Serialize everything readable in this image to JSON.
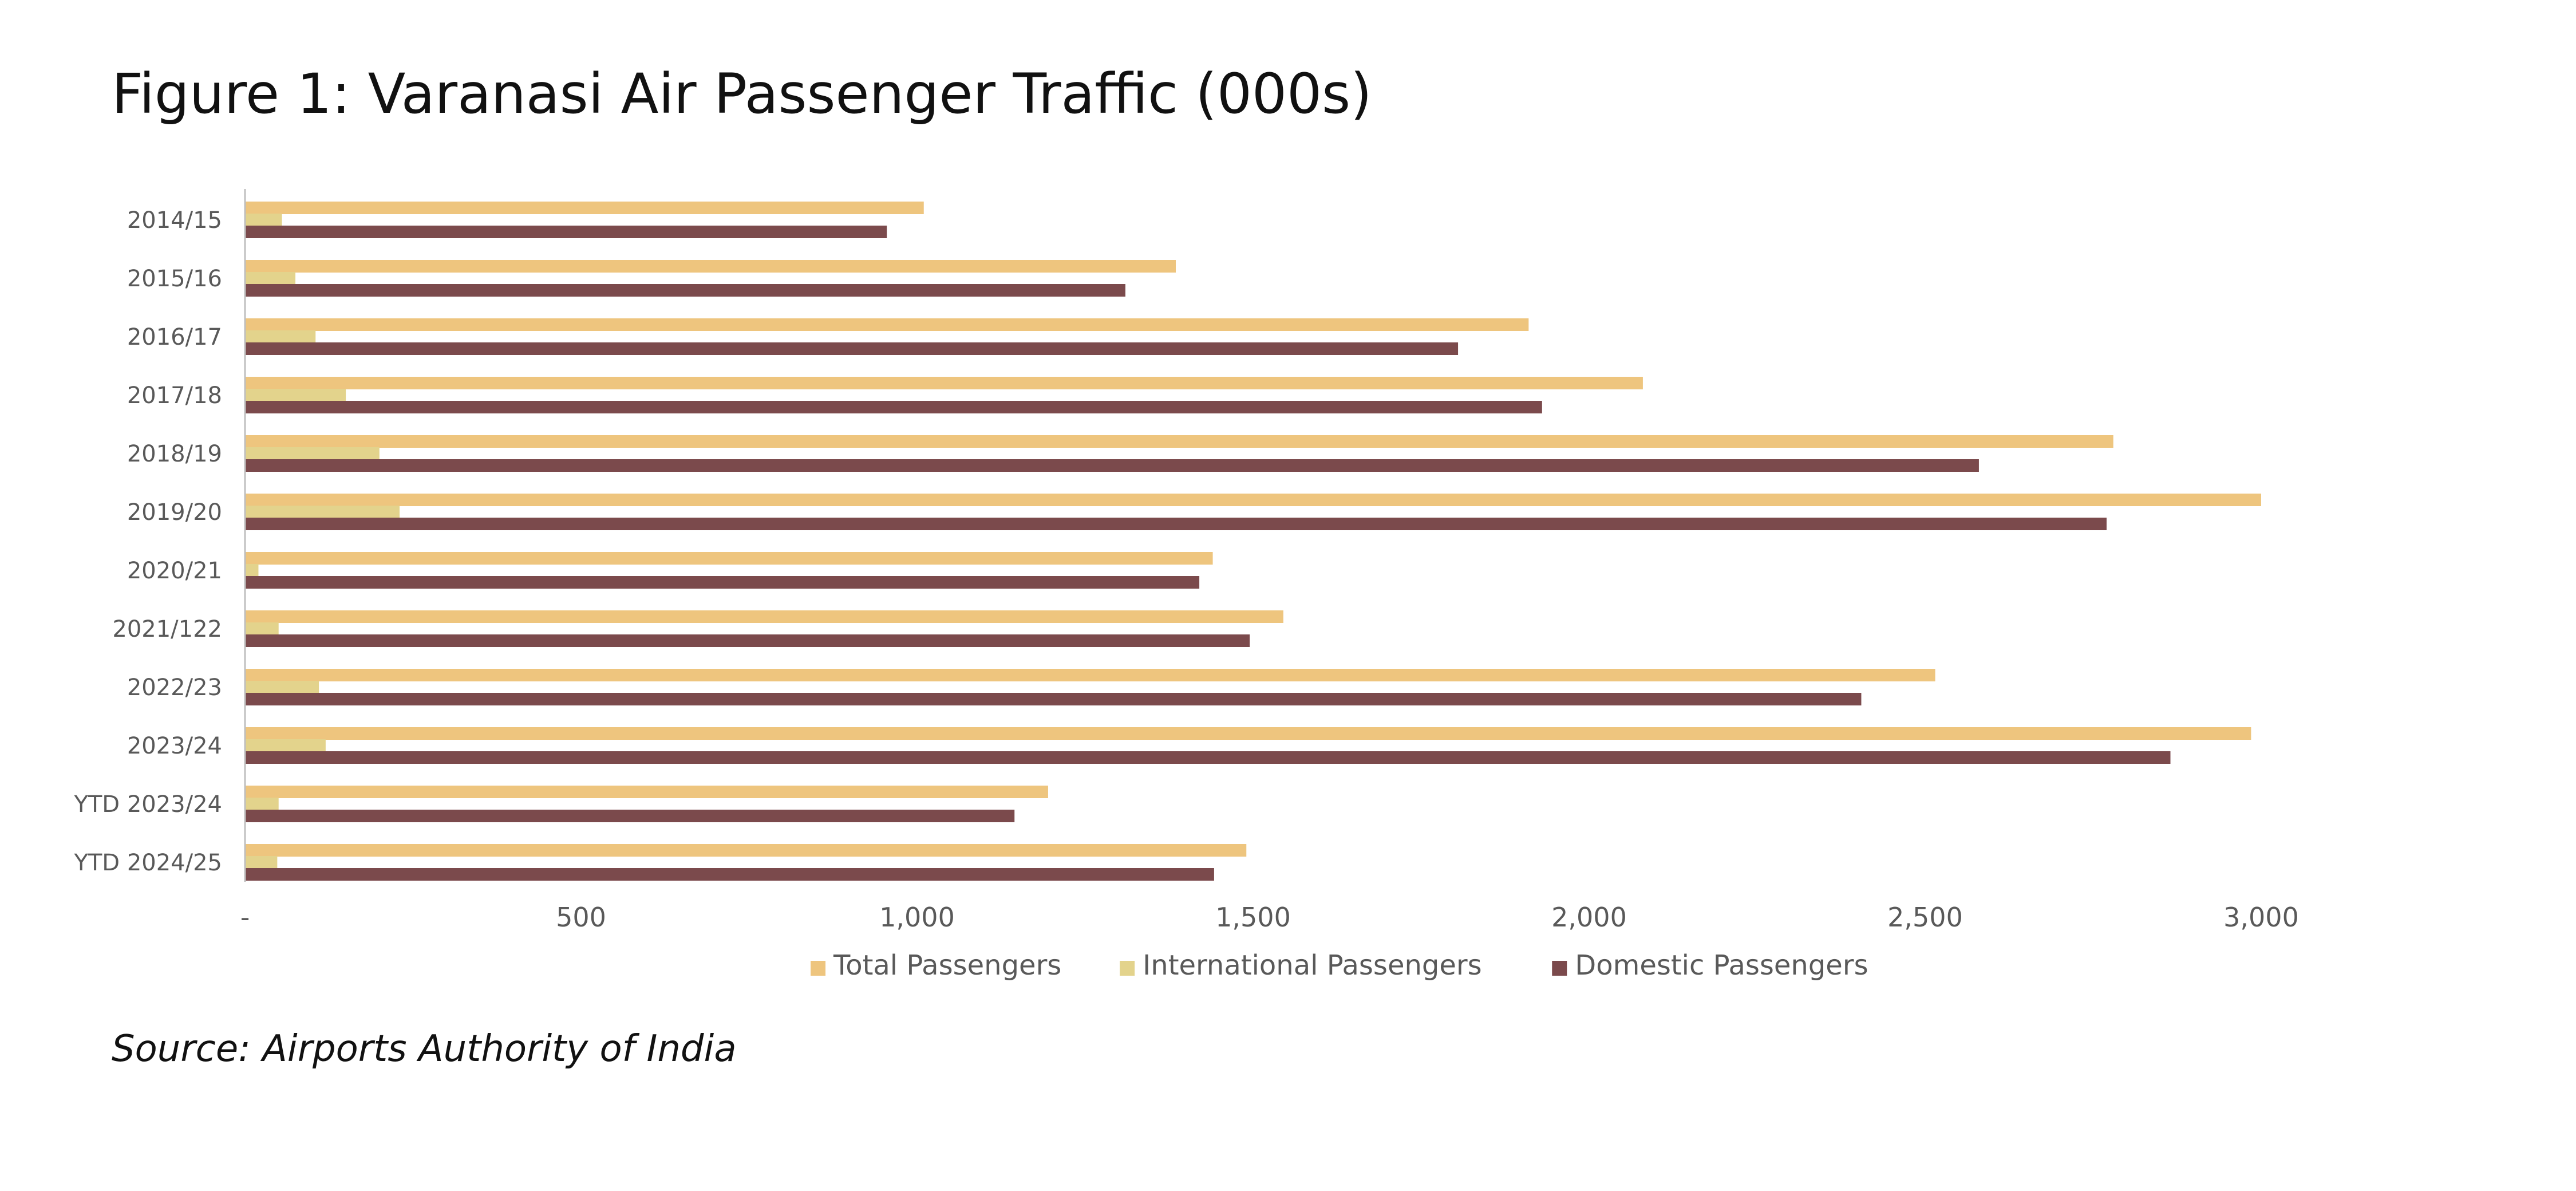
{
  "title": "Figure 1: Varanasi Air Passenger Traffic (000s)",
  "source": "Source: Airports Authority of India",
  "colors": {
    "total": "#EEC57E",
    "international": "#E3D38C",
    "domestic": "#7B4A4C",
    "axis": "#BFBFBF",
    "text": "#595959"
  },
  "chart_data": {
    "type": "bar",
    "orientation": "horizontal",
    "categories": [
      "2014/15",
      "2015/16",
      "2016/17",
      "2017/18",
      "2018/19",
      "2019/20",
      "2020/21",
      "2021/122",
      "2022/23",
      "2023/24",
      "YTD 2023/24",
      "YTD 2024/25"
    ],
    "series": [
      {
        "name": "Total Passengers",
        "values": [
          1010,
          1385,
          1910,
          2080,
          2780,
          3000,
          1440,
          1545,
          2515,
          2985,
          1195,
          1490
        ]
      },
      {
        "name": "International Passengers",
        "values": [
          55,
          75,
          105,
          150,
          200,
          230,
          20,
          50,
          110,
          120,
          50,
          48
        ]
      },
      {
        "name": "Domestic Passengers",
        "values": [
          955,
          1310,
          1805,
          1930,
          2580,
          2770,
          1420,
          1495,
          2405,
          2865,
          1145,
          1442
        ]
      }
    ],
    "xlim": [
      0,
      3000
    ],
    "xticks": [
      0,
      500,
      1000,
      1500,
      2000,
      2500,
      3000
    ],
    "xtick_labels": [
      "-",
      "500",
      "1,000",
      "1,500",
      "2,000",
      "2,500",
      "3,000"
    ],
    "legend": "bottom",
    "grid": false
  }
}
